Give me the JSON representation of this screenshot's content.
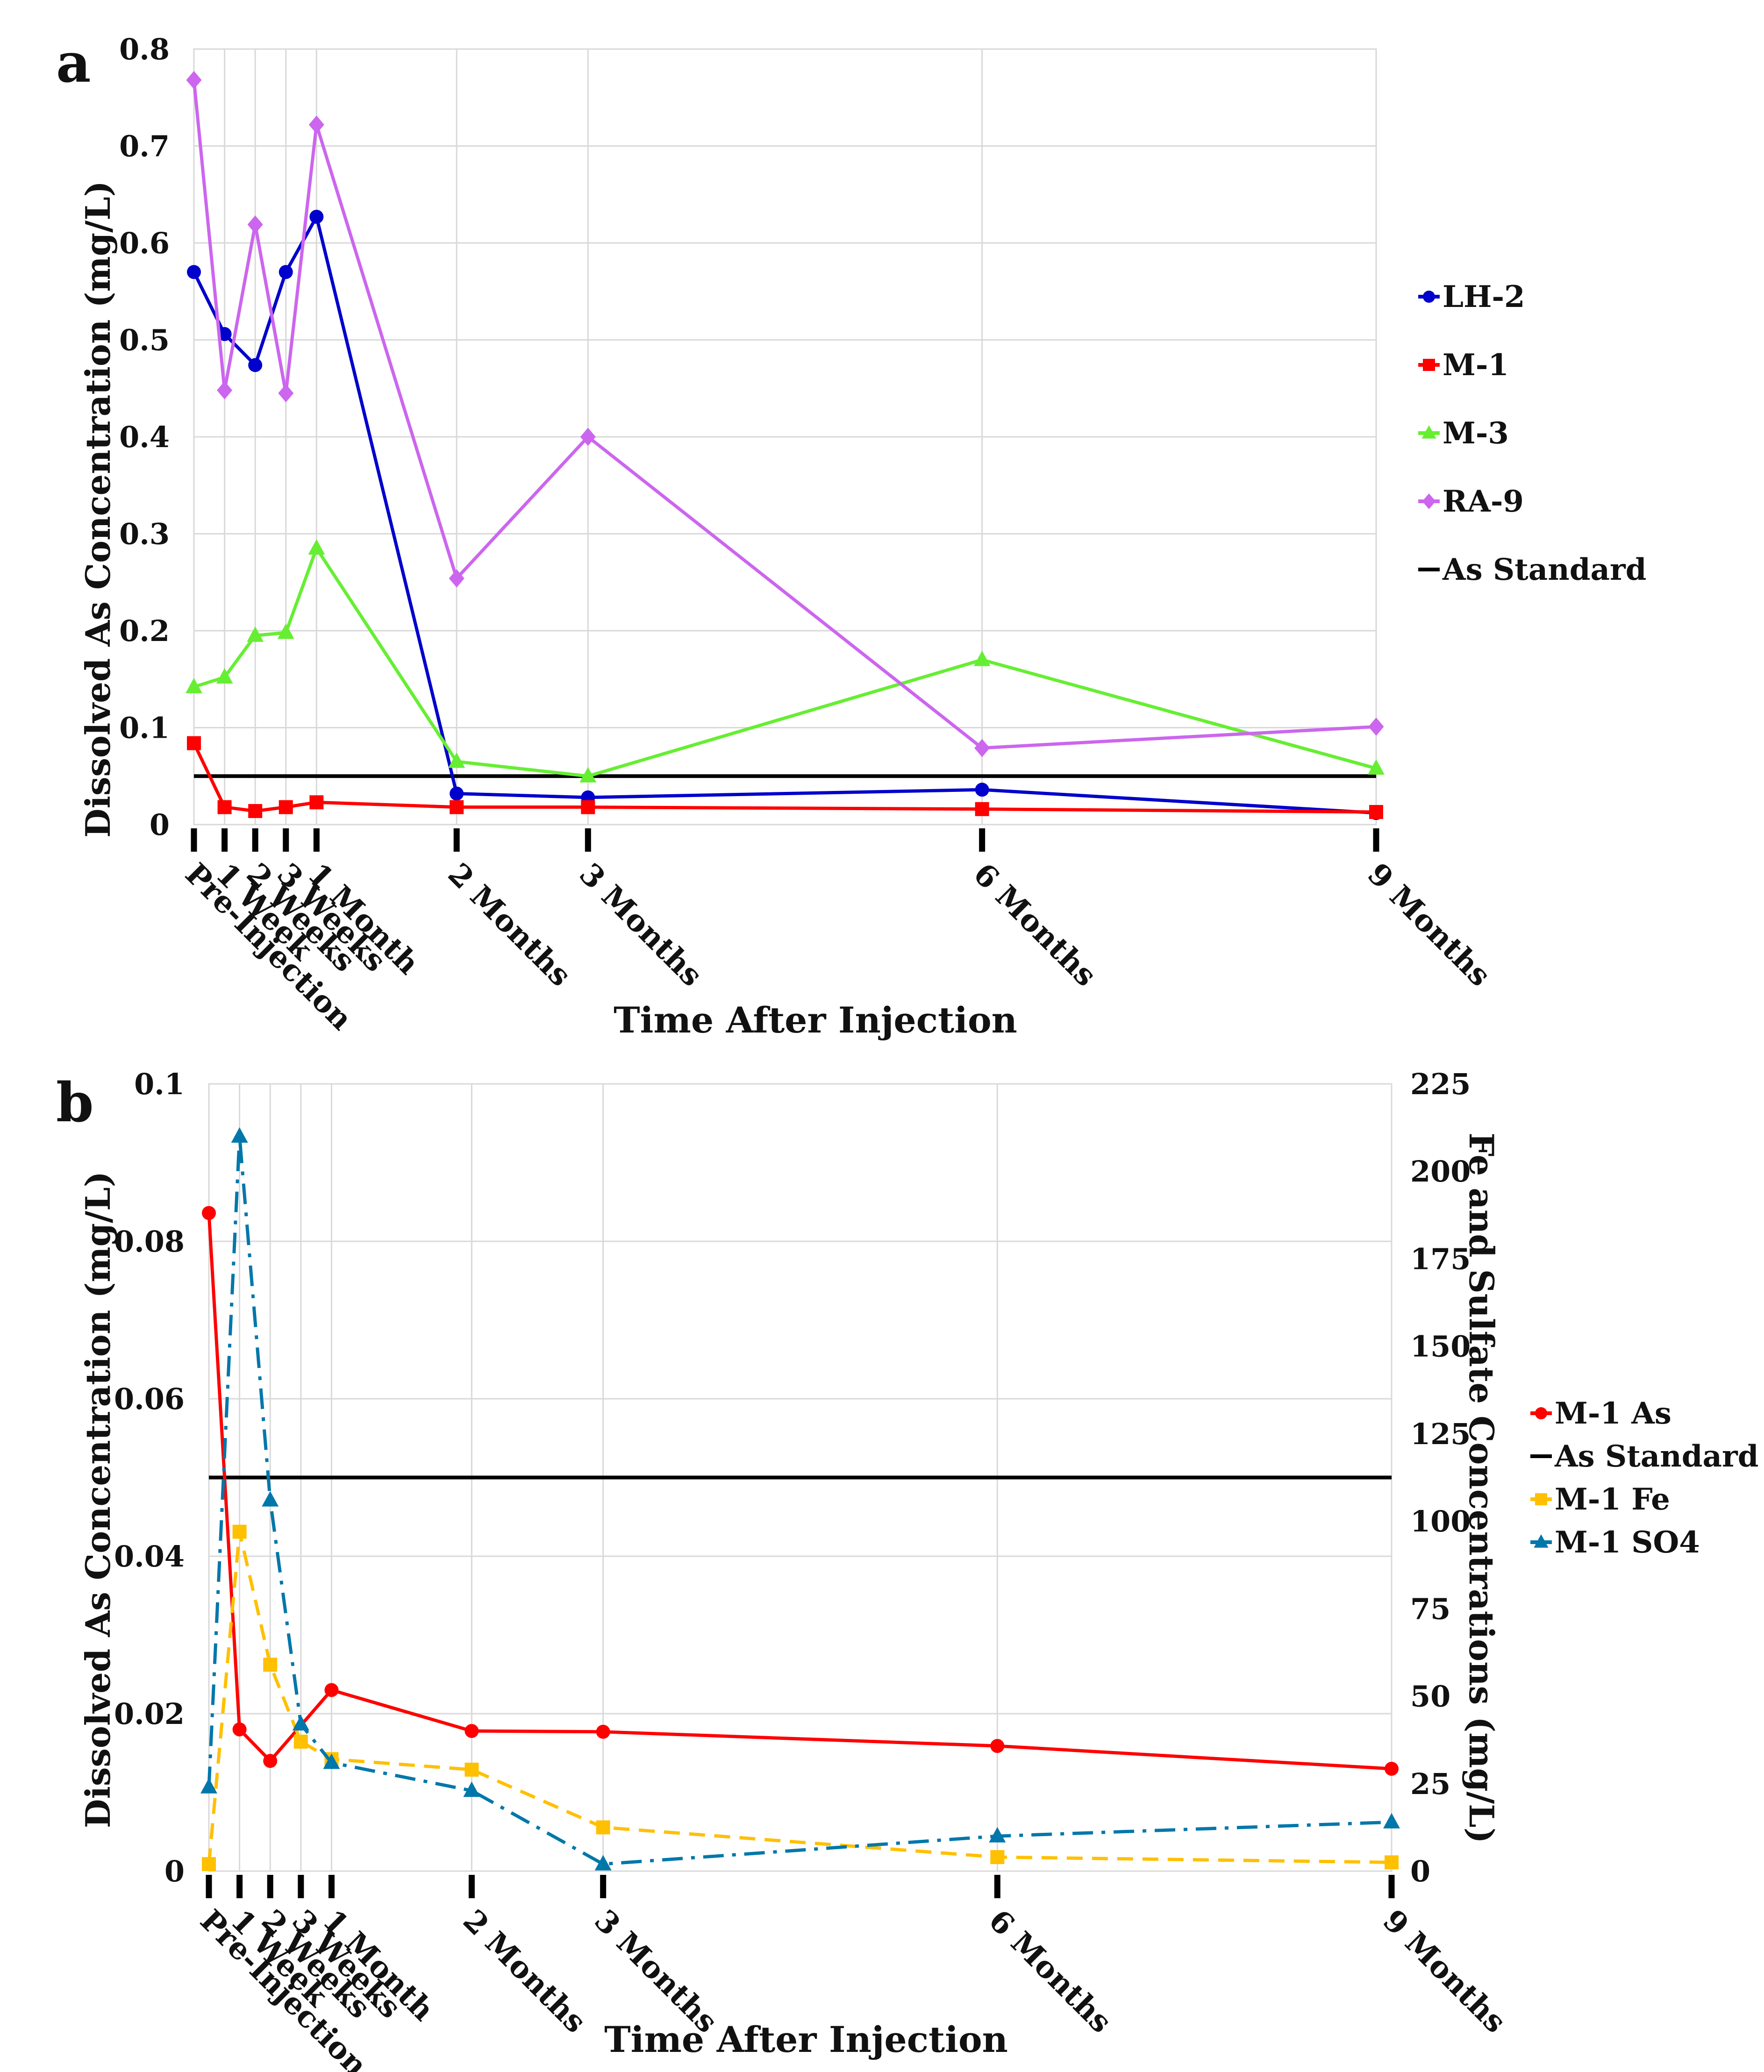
{
  "chart_data": [
    {
      "panel": "a",
      "type": "line",
      "title": "",
      "xlabel": "Time After Injection",
      "ylabel": "Dissolved As Concentration (mg/L)",
      "ylim": [
        0,
        0.8
      ],
      "yticks": [
        "0",
        "0.1",
        "0.2",
        "0.3",
        "0.4",
        "0.5",
        "0.6",
        "0.7",
        "0.8"
      ],
      "x_unit": "days after injection",
      "x": [
        0,
        7,
        14,
        21,
        28,
        60,
        90,
        180,
        270
      ],
      "tick_labels": [
        "Pre-Injection",
        "1 Week",
        "2 Weeks",
        "3 Weeks",
        "1 Month",
        "2 Months",
        "3 Months",
        "6 Months",
        "9 Months"
      ],
      "grid": true,
      "legend_position": "right",
      "series": [
        {
          "name": "LH-2",
          "color": "#0000cc",
          "marker": "circle",
          "values": [
            0.57,
            0.506,
            0.474,
            0.57,
            0.627,
            0.032,
            0.028,
            0.036,
            0.012
          ]
        },
        {
          "name": "M-1",
          "color": "#ff0000",
          "marker": "square",
          "values": [
            0.084,
            0.018,
            0.014,
            0.018,
            0.023,
            0.018,
            0.018,
            0.016,
            0.013
          ]
        },
        {
          "name": "M-3",
          "color": "#66ee33",
          "marker": "triangle",
          "values": [
            0.142,
            0.152,
            0.195,
            0.198,
            0.285,
            0.065,
            0.05,
            0.17,
            0.058
          ]
        },
        {
          "name": "RA-9",
          "color": "#cc66ee",
          "marker": "diamond",
          "values": [
            0.768,
            0.448,
            0.619,
            0.445,
            0.722,
            0.254,
            0.4,
            0.079,
            0.101
          ]
        }
      ],
      "reference_lines": [
        {
          "name": "As Standard",
          "color": "#000000",
          "value": 0.05
        }
      ]
    },
    {
      "panel": "b",
      "type": "line",
      "title": "",
      "xlabel": "Time After Injection",
      "ylabel": "Dissolved As Concentration (mg/L)",
      "ylabel_right": "Fe and Sulfate Concentrations (mg/L)",
      "ylim": [
        0,
        0.1
      ],
      "yticks": [
        "0",
        "0.02",
        "0.04",
        "0.06",
        "0.08",
        "0.1"
      ],
      "ylim_right": [
        0,
        225
      ],
      "yticks_right": [
        "0",
        "25",
        "50",
        "75",
        "100",
        "125",
        "150",
        "175",
        "200",
        "225"
      ],
      "x_unit": "days after injection",
      "x": [
        0,
        7,
        14,
        21,
        28,
        60,
        90,
        180,
        270
      ],
      "tick_labels": [
        "Pre-Injection",
        "1 Week",
        "2 Weeks",
        "3 Weeks",
        "1 Month",
        "2 Months",
        "3 Months",
        "6 Months",
        "9 Months"
      ],
      "grid": true,
      "legend_position": "right",
      "series": [
        {
          "name": "M-1 As",
          "color": "#ff0000",
          "marker": "circle",
          "axis": "left",
          "dash": "solid",
          "values": [
            0.0836,
            0.018,
            0.014,
            null,
            0.023,
            0.0178,
            0.0177,
            0.0159,
            0.013
          ]
        },
        {
          "name": "M-1 Fe",
          "color": "#ffc000",
          "marker": "square",
          "axis": "right",
          "dash": "dashed",
          "values": [
            2,
            97,
            59,
            37,
            32,
            29,
            12.5,
            4,
            2.5
          ]
        },
        {
          "name": "M-1 SO4",
          "color": "#0077aa",
          "marker": "triangle",
          "axis": "right",
          "dash": "dashdot",
          "values": [
            24,
            210,
            106,
            42,
            31,
            23,
            2,
            10,
            14
          ]
        }
      ],
      "reference_lines": [
        {
          "name": "As Standard",
          "color": "#000000",
          "value": 0.05,
          "axis": "left"
        }
      ],
      "legend_order": [
        "M-1 As",
        "As Standard",
        "M-1 Fe",
        "M-1 SO4"
      ]
    }
  ]
}
